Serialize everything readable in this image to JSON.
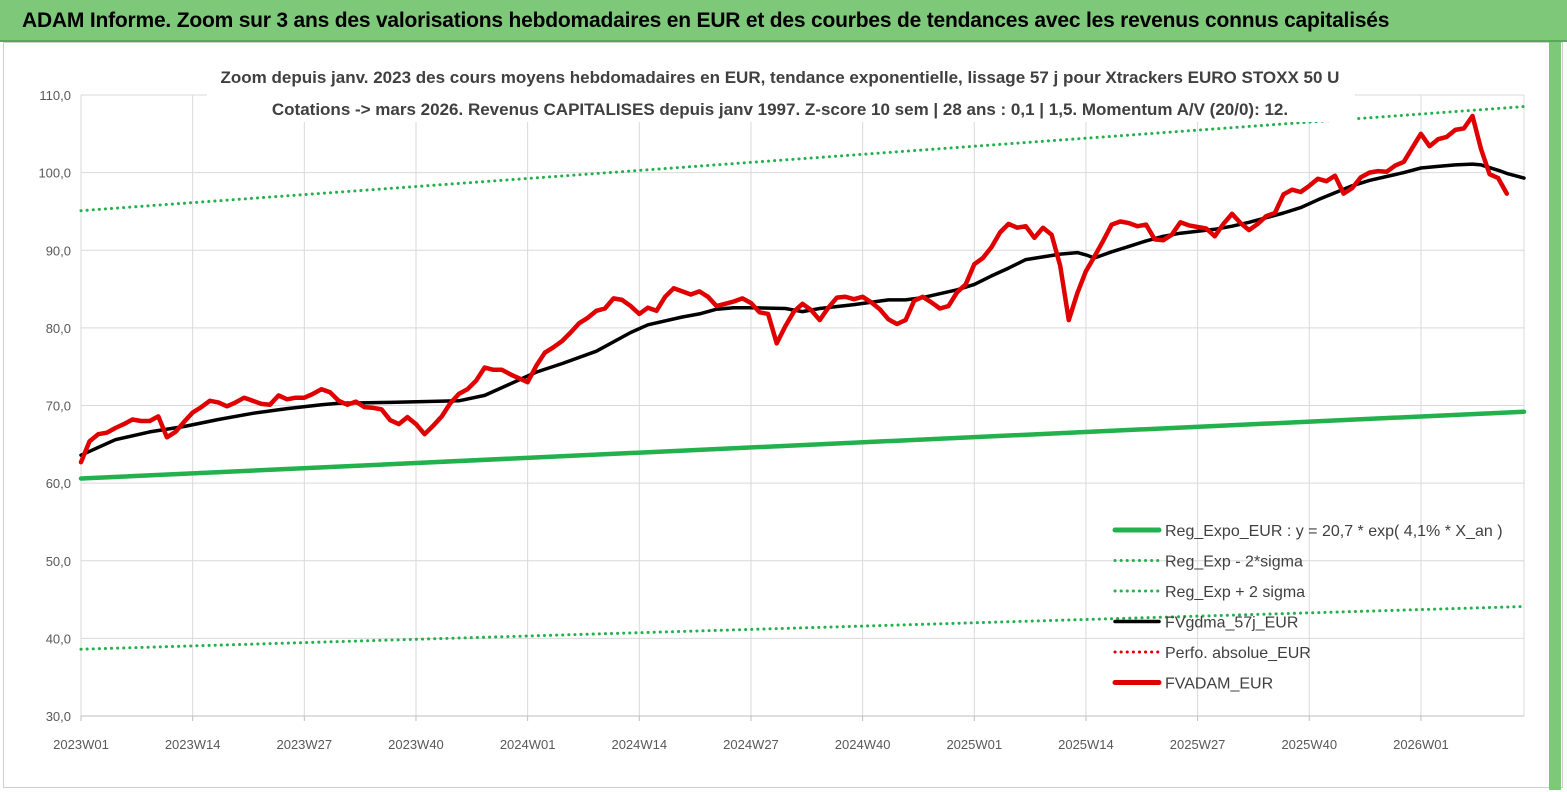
{
  "banner": {
    "title": "ADAM Informe. Zoom sur 3 ans des valorisations hebdomadaires en EUR et des courbes de tendances avec les revenus connus capitalisés"
  },
  "chart_data": {
    "type": "line",
    "title_lines": [
      "Zoom depuis janv. 2023 des cours moyens hebdomadaires en EUR, tendance exponentielle, lissage 57 j  pour Xtrackers EURO STOXX 50 U",
      "Cotations -> mars 2026. Revenus CAPITALISES depuis janv 1997. Z-score 10 sem | 28 ans : 0,1 | 1,5. Momentum A/V (20/0): 12."
    ],
    "ylim": [
      30,
      110
    ],
    "y_ticks": [
      "30,0",
      "40,0",
      "50,0",
      "60,0",
      "70,0",
      "80,0",
      "90,0",
      "100,0",
      "110,0"
    ],
    "x_tick_labels": [
      "2023W01",
      "2023W14",
      "2023W27",
      "2023W40",
      "2024W01",
      "2024W14",
      "2024W27",
      "2024W40",
      "2025W01",
      "2025W14",
      "2025W27",
      "2025W40",
      "2026W01"
    ],
    "x_tick_weeks": [
      0,
      13,
      26,
      39,
      52,
      65,
      78,
      91,
      104,
      117,
      130,
      143,
      156
    ],
    "x_range_weeks": [
      0,
      168
    ],
    "grid": true,
    "legend_position": "bottom-right",
    "series": [
      {
        "name": "Reg_Expo_EUR : y =  20,7 * exp( 4,1% *  X_an )",
        "color": "#22b14c",
        "style": "solid-thick",
        "points": [
          [
            0,
            60.6
          ],
          [
            168,
            69.2
          ]
        ]
      },
      {
        "name": "Reg_Exp - 2*sigma",
        "color": "#22b14c",
        "style": "dotted",
        "points": [
          [
            0,
            38.6
          ],
          [
            168,
            44.1
          ]
        ]
      },
      {
        "name": "Reg_Exp + 2 sigma",
        "color": "#22b14c",
        "style": "dotted",
        "points": [
          [
            0,
            95.1
          ],
          [
            168,
            108.5
          ]
        ]
      },
      {
        "name": "FVgdma_57j_EUR",
        "color": "#000000",
        "style": "solid",
        "points": [
          [
            0,
            63.6
          ],
          [
            4,
            65.6
          ],
          [
            8,
            66.6
          ],
          [
            12,
            67.3
          ],
          [
            16,
            68.2
          ],
          [
            20,
            69.0
          ],
          [
            24,
            69.6
          ],
          [
            28,
            70.1
          ],
          [
            30,
            70.3
          ],
          [
            36,
            70.4
          ],
          [
            44,
            70.6
          ],
          [
            47,
            71.3
          ],
          [
            50,
            72.8
          ],
          [
            53,
            74.3
          ],
          [
            56,
            75.4
          ],
          [
            60,
            77.0
          ],
          [
            64,
            79.4
          ],
          [
            66,
            80.4
          ],
          [
            70,
            81.4
          ],
          [
            72,
            81.8
          ],
          [
            74,
            82.4
          ],
          [
            76,
            82.6
          ],
          [
            78,
            82.6
          ],
          [
            82,
            82.5
          ],
          [
            84,
            82.1
          ],
          [
            86,
            82.5
          ],
          [
            90,
            83.0
          ],
          [
            94,
            83.6
          ],
          [
            96,
            83.6
          ],
          [
            98,
            83.9
          ],
          [
            100,
            84.4
          ],
          [
            102,
            84.9
          ],
          [
            104,
            85.6
          ],
          [
            106,
            86.7
          ],
          [
            108,
            87.7
          ],
          [
            110,
            88.8
          ],
          [
            114,
            89.5
          ],
          [
            116,
            89.7
          ],
          [
            117,
            89.4
          ],
          [
            118,
            89.0
          ],
          [
            120,
            89.8
          ],
          [
            122,
            90.5
          ],
          [
            124,
            91.2
          ],
          [
            126,
            91.8
          ],
          [
            128,
            92.2
          ],
          [
            132,
            92.7
          ],
          [
            134,
            93.1
          ],
          [
            136,
            93.6
          ],
          [
            140,
            94.8
          ],
          [
            142,
            95.5
          ],
          [
            144,
            96.5
          ],
          [
            146,
            97.4
          ],
          [
            148,
            98.3
          ],
          [
            150,
            99.0
          ],
          [
            152,
            99.5
          ],
          [
            154,
            100.0
          ],
          [
            156,
            100.6
          ],
          [
            158,
            100.8
          ],
          [
            160,
            101.0
          ],
          [
            162,
            101.1
          ],
          [
            163,
            101.0
          ],
          [
            165,
            100.3
          ],
          [
            166,
            99.9
          ],
          [
            168,
            99.3
          ]
        ]
      },
      {
        "name": "Perfo. absolue_EUR",
        "color": "#e00000",
        "style": "dotted",
        "points": []
      },
      {
        "name": "FVADAM_EUR",
        "color": "#e00000",
        "style": "solid-thick",
        "points": [
          [
            0,
            62.7
          ],
          [
            1,
            65.4
          ],
          [
            2,
            66.3
          ],
          [
            3,
            66.5
          ],
          [
            4,
            67.1
          ],
          [
            5,
            67.6
          ],
          [
            6,
            68.2
          ],
          [
            7,
            68.0
          ],
          [
            8,
            68.0
          ],
          [
            9,
            68.6
          ],
          [
            10,
            65.9
          ],
          [
            11,
            66.6
          ],
          [
            12,
            67.9
          ],
          [
            13,
            69.1
          ],
          [
            14,
            69.8
          ],
          [
            15,
            70.6
          ],
          [
            16,
            70.4
          ],
          [
            17,
            69.9
          ],
          [
            18,
            70.4
          ],
          [
            19,
            71.0
          ],
          [
            20,
            70.6
          ],
          [
            21,
            70.2
          ],
          [
            22,
            70.1
          ],
          [
            23,
            71.3
          ],
          [
            24,
            70.8
          ],
          [
            25,
            71.0
          ],
          [
            26,
            71.0
          ],
          [
            27,
            71.5
          ],
          [
            28,
            72.1
          ],
          [
            29,
            71.7
          ],
          [
            30,
            70.6
          ],
          [
            31,
            70.1
          ],
          [
            32,
            70.5
          ],
          [
            33,
            69.8
          ],
          [
            34,
            69.7
          ],
          [
            35,
            69.5
          ],
          [
            36,
            68.1
          ],
          [
            37,
            67.6
          ],
          [
            38,
            68.5
          ],
          [
            39,
            67.6
          ],
          [
            40,
            66.3
          ],
          [
            41,
            67.4
          ],
          [
            42,
            68.6
          ],
          [
            43,
            70.3
          ],
          [
            44,
            71.5
          ],
          [
            45,
            72.1
          ],
          [
            46,
            73.2
          ],
          [
            47,
            74.9
          ],
          [
            48,
            74.6
          ],
          [
            49,
            74.6
          ],
          [
            50,
            74.0
          ],
          [
            51,
            73.5
          ],
          [
            52,
            73.0
          ],
          [
            53,
            75.1
          ],
          [
            54,
            76.8
          ],
          [
            55,
            77.5
          ],
          [
            56,
            78.3
          ],
          [
            57,
            79.4
          ],
          [
            58,
            80.6
          ],
          [
            59,
            81.3
          ],
          [
            60,
            82.2
          ],
          [
            61,
            82.5
          ],
          [
            62,
            83.8
          ],
          [
            63,
            83.6
          ],
          [
            64,
            82.8
          ],
          [
            65,
            81.8
          ],
          [
            66,
            82.6
          ],
          [
            67,
            82.2
          ],
          [
            68,
            84.0
          ],
          [
            69,
            85.1
          ],
          [
            70,
            84.7
          ],
          [
            71,
            84.3
          ],
          [
            72,
            84.7
          ],
          [
            73,
            84.0
          ],
          [
            74,
            82.8
          ],
          [
            75,
            83.1
          ],
          [
            76,
            83.4
          ],
          [
            77,
            83.8
          ],
          [
            78,
            83.2
          ],
          [
            79,
            82.0
          ],
          [
            80,
            81.8
          ],
          [
            81,
            78.0
          ],
          [
            82,
            80.2
          ],
          [
            83,
            82.1
          ],
          [
            84,
            83.1
          ],
          [
            85,
            82.3
          ],
          [
            86,
            81.0
          ],
          [
            87,
            82.6
          ],
          [
            88,
            83.9
          ],
          [
            89,
            84.0
          ],
          [
            90,
            83.7
          ],
          [
            91,
            84.0
          ],
          [
            92,
            83.3
          ],
          [
            93,
            82.4
          ],
          [
            94,
            81.1
          ],
          [
            95,
            80.5
          ],
          [
            96,
            81.0
          ],
          [
            97,
            83.5
          ],
          [
            98,
            84.0
          ],
          [
            99,
            83.3
          ],
          [
            100,
            82.5
          ],
          [
            101,
            82.8
          ],
          [
            102,
            84.6
          ],
          [
            103,
            85.6
          ],
          [
            104,
            88.2
          ],
          [
            105,
            89.0
          ],
          [
            106,
            90.4
          ],
          [
            107,
            92.3
          ],
          [
            108,
            93.4
          ],
          [
            109,
            92.9
          ],
          [
            110,
            93.1
          ],
          [
            111,
            91.6
          ],
          [
            112,
            92.9
          ],
          [
            113,
            92.0
          ],
          [
            114,
            88.0
          ],
          [
            115,
            81.0
          ],
          [
            116,
            84.5
          ],
          [
            117,
            87.3
          ],
          [
            118,
            89.2
          ],
          [
            119,
            91.2
          ],
          [
            120,
            93.3
          ],
          [
            121,
            93.7
          ],
          [
            122,
            93.5
          ],
          [
            123,
            93.1
          ],
          [
            124,
            93.3
          ],
          [
            125,
            91.4
          ],
          [
            126,
            91.3
          ],
          [
            127,
            92.0
          ],
          [
            128,
            93.6
          ],
          [
            129,
            93.2
          ],
          [
            130,
            93.0
          ],
          [
            131,
            92.8
          ],
          [
            132,
            91.8
          ],
          [
            133,
            93.4
          ],
          [
            134,
            94.7
          ],
          [
            135,
            93.5
          ],
          [
            136,
            92.6
          ],
          [
            137,
            93.4
          ],
          [
            138,
            94.4
          ],
          [
            139,
            94.8
          ],
          [
            140,
            97.2
          ],
          [
            141,
            97.8
          ],
          [
            142,
            97.5
          ],
          [
            143,
            98.3
          ],
          [
            144,
            99.2
          ],
          [
            145,
            98.9
          ],
          [
            146,
            99.6
          ],
          [
            147,
            97.3
          ],
          [
            148,
            98.0
          ],
          [
            149,
            99.4
          ],
          [
            150,
            100.0
          ],
          [
            151,
            100.2
          ],
          [
            152,
            100.1
          ],
          [
            153,
            100.9
          ],
          [
            154,
            101.4
          ],
          [
            155,
            103.2
          ],
          [
            156,
            105.0
          ],
          [
            157,
            103.4
          ],
          [
            158,
            104.3
          ],
          [
            159,
            104.6
          ],
          [
            160,
            105.5
          ],
          [
            161,
            105.7
          ],
          [
            162,
            107.3
          ],
          [
            163,
            103.0
          ],
          [
            164,
            99.8
          ],
          [
            165,
            99.3
          ],
          [
            166,
            97.3
          ]
        ]
      }
    ]
  }
}
